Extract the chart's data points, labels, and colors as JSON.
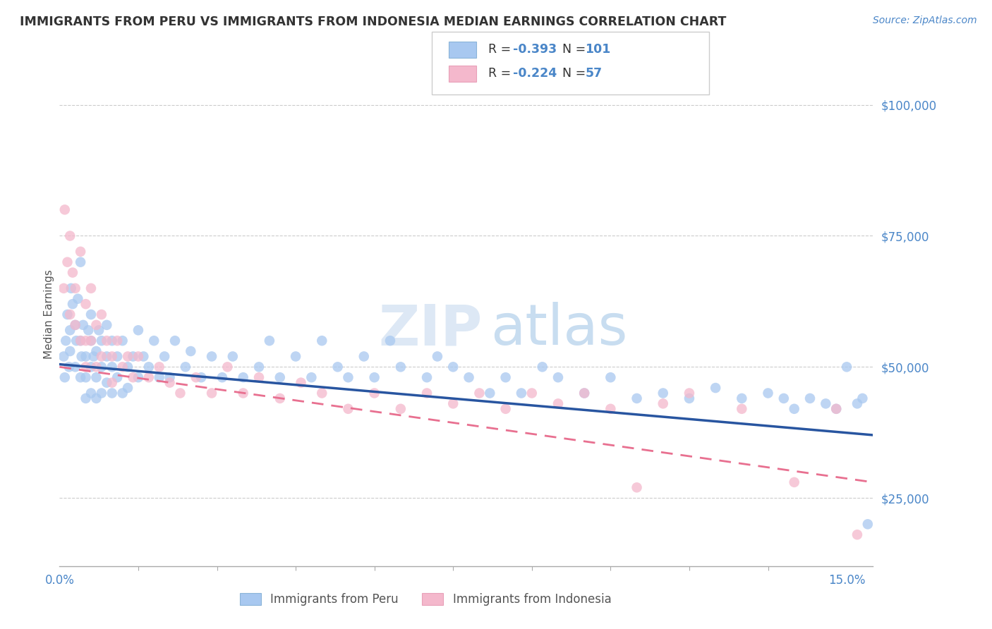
{
  "title": "IMMIGRANTS FROM PERU VS IMMIGRANTS FROM INDONESIA MEDIAN EARNINGS CORRELATION CHART",
  "source": "Source: ZipAtlas.com",
  "ylabel": "Median Earnings",
  "xlim": [
    0.0,
    0.155
  ],
  "ylim": [
    12000,
    108000
  ],
  "yticks": [
    25000,
    50000,
    75000,
    100000
  ],
  "ytick_labels": [
    "$25,000",
    "$50,000",
    "$75,000",
    "$100,000"
  ],
  "xtick_positions": [
    0.0,
    0.15
  ],
  "xtick_labels": [
    "0.0%",
    "15.0%"
  ],
  "peru_color": "#a8c8f0",
  "indonesia_color": "#f4b8cc",
  "peru_line_color": "#2855a0",
  "indonesia_line_color": "#e87090",
  "legend_r_peru": "R = -0.393",
  "legend_n_peru": "N = 101",
  "legend_r_indonesia": "R = -0.224",
  "legend_n_indonesia": "N =  57",
  "label_peru": "Immigrants from Peru",
  "label_indonesia": "Immigrants from Indonesia",
  "tick_label_color": "#4a86c8",
  "watermark_text": "ZIPatlas",
  "background_color": "#ffffff",
  "peru_x": [
    0.0008,
    0.001,
    0.0012,
    0.0015,
    0.0018,
    0.002,
    0.002,
    0.0022,
    0.0025,
    0.003,
    0.003,
    0.0032,
    0.0035,
    0.004,
    0.004,
    0.004,
    0.0042,
    0.0045,
    0.005,
    0.005,
    0.005,
    0.0055,
    0.006,
    0.006,
    0.006,
    0.006,
    0.0065,
    0.007,
    0.007,
    0.007,
    0.0075,
    0.008,
    0.008,
    0.008,
    0.009,
    0.009,
    0.009,
    0.01,
    0.01,
    0.01,
    0.011,
    0.011,
    0.012,
    0.012,
    0.013,
    0.013,
    0.014,
    0.015,
    0.015,
    0.016,
    0.017,
    0.018,
    0.019,
    0.02,
    0.021,
    0.022,
    0.024,
    0.025,
    0.027,
    0.029,
    0.031,
    0.033,
    0.035,
    0.038,
    0.04,
    0.042,
    0.045,
    0.048,
    0.05,
    0.053,
    0.055,
    0.058,
    0.06,
    0.063,
    0.065,
    0.07,
    0.072,
    0.075,
    0.078,
    0.082,
    0.085,
    0.088,
    0.092,
    0.095,
    0.1,
    0.105,
    0.11,
    0.115,
    0.12,
    0.125,
    0.13,
    0.135,
    0.138,
    0.14,
    0.143,
    0.146,
    0.148,
    0.15,
    0.152,
    0.153,
    0.154
  ],
  "peru_y": [
    52000,
    48000,
    55000,
    60000,
    50000,
    57000,
    53000,
    65000,
    62000,
    58000,
    50000,
    55000,
    63000,
    70000,
    48000,
    55000,
    52000,
    58000,
    52000,
    48000,
    44000,
    57000,
    55000,
    50000,
    45000,
    60000,
    52000,
    53000,
    48000,
    44000,
    57000,
    55000,
    50000,
    45000,
    58000,
    52000,
    47000,
    55000,
    50000,
    45000,
    52000,
    48000,
    55000,
    45000,
    50000,
    46000,
    52000,
    57000,
    48000,
    52000,
    50000,
    55000,
    48000,
    52000,
    48000,
    55000,
    50000,
    53000,
    48000,
    52000,
    48000,
    52000,
    48000,
    50000,
    55000,
    48000,
    52000,
    48000,
    55000,
    50000,
    48000,
    52000,
    48000,
    55000,
    50000,
    48000,
    52000,
    50000,
    48000,
    45000,
    48000,
    45000,
    50000,
    48000,
    45000,
    48000,
    44000,
    45000,
    44000,
    46000,
    44000,
    45000,
    44000,
    42000,
    44000,
    43000,
    42000,
    50000,
    43000,
    44000,
    20000
  ],
  "indonesia_x": [
    0.0008,
    0.001,
    0.0015,
    0.002,
    0.002,
    0.0025,
    0.003,
    0.003,
    0.004,
    0.004,
    0.005,
    0.005,
    0.005,
    0.006,
    0.006,
    0.007,
    0.007,
    0.008,
    0.008,
    0.009,
    0.01,
    0.01,
    0.011,
    0.012,
    0.013,
    0.014,
    0.015,
    0.017,
    0.019,
    0.021,
    0.023,
    0.026,
    0.029,
    0.032,
    0.035,
    0.038,
    0.042,
    0.046,
    0.05,
    0.055,
    0.06,
    0.065,
    0.07,
    0.075,
    0.08,
    0.085,
    0.09,
    0.095,
    0.1,
    0.105,
    0.11,
    0.115,
    0.12,
    0.13,
    0.14,
    0.148,
    0.152
  ],
  "indonesia_y": [
    65000,
    80000,
    70000,
    75000,
    60000,
    68000,
    65000,
    58000,
    72000,
    55000,
    62000,
    55000,
    50000,
    65000,
    55000,
    58000,
    50000,
    60000,
    52000,
    55000,
    52000,
    47000,
    55000,
    50000,
    52000,
    48000,
    52000,
    48000,
    50000,
    47000,
    45000,
    48000,
    45000,
    50000,
    45000,
    48000,
    44000,
    47000,
    45000,
    42000,
    45000,
    42000,
    45000,
    43000,
    45000,
    42000,
    45000,
    43000,
    45000,
    42000,
    27000,
    43000,
    45000,
    42000,
    28000,
    42000,
    18000
  ]
}
